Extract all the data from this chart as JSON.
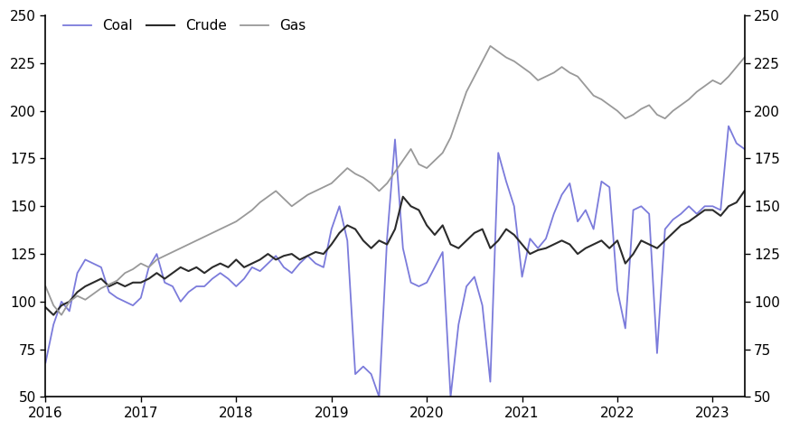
{
  "coal_color": "#7b7bdb",
  "crude_color": "#2b2b2b",
  "gas_color": "#999999",
  "ylim": [
    50,
    250
  ],
  "yticks": [
    50,
    75,
    100,
    125,
    150,
    175,
    200,
    225,
    250
  ],
  "coal": [
    68,
    88,
    100,
    95,
    115,
    122,
    120,
    118,
    105,
    102,
    100,
    98,
    102,
    118,
    125,
    110,
    108,
    100,
    105,
    108,
    108,
    112,
    115,
    112,
    108,
    112,
    118,
    116,
    120,
    124,
    118,
    115,
    120,
    124,
    120,
    118,
    138,
    150,
    132,
    62,
    66,
    62,
    50,
    133,
    185,
    128,
    110,
    108,
    110,
    118,
    126,
    50,
    88,
    108,
    113,
    98,
    58,
    178,
    163,
    150,
    113,
    133,
    128,
    133,
    146,
    156,
    162,
    142,
    148,
    138,
    163,
    160,
    106,
    86,
    148,
    150,
    146,
    73,
    138,
    143,
    146,
    150,
    146,
    150,
    150,
    148,
    192,
    183,
    180
  ],
  "crude": [
    97,
    93,
    98,
    100,
    105,
    108,
    110,
    112,
    108,
    110,
    108,
    110,
    110,
    112,
    115,
    112,
    115,
    118,
    116,
    118,
    115,
    118,
    120,
    118,
    122,
    118,
    120,
    122,
    125,
    122,
    124,
    125,
    122,
    124,
    126,
    125,
    130,
    136,
    140,
    138,
    132,
    128,
    132,
    130,
    138,
    155,
    150,
    148,
    140,
    135,
    140,
    130,
    128,
    132,
    136,
    138,
    128,
    132,
    138,
    135,
    130,
    125,
    127,
    128,
    130,
    132,
    130,
    125,
    128,
    130,
    132,
    128,
    132,
    120,
    125,
    132,
    130,
    128,
    132,
    136,
    140,
    142,
    145,
    148,
    148,
    145,
    150,
    152,
    158
  ],
  "gas": [
    108,
    98,
    93,
    100,
    103,
    101,
    104,
    107,
    109,
    111,
    115,
    117,
    120,
    118,
    122,
    124,
    126,
    128,
    130,
    132,
    134,
    136,
    138,
    140,
    142,
    145,
    148,
    152,
    155,
    158,
    154,
    150,
    153,
    156,
    158,
    160,
    162,
    166,
    170,
    167,
    165,
    162,
    158,
    162,
    168,
    174,
    180,
    172,
    170,
    174,
    178,
    186,
    198,
    210,
    218,
    226,
    234,
    231,
    228,
    226,
    223,
    220,
    216,
    218,
    220,
    223,
    220,
    218,
    213,
    208,
    206,
    203,
    200,
    196,
    198,
    201,
    203,
    198,
    196,
    200,
    203,
    206,
    210,
    213,
    216,
    214,
    218,
    223,
    228
  ],
  "xtick_labels": [
    "2016",
    "2017",
    "2018",
    "2019",
    "2020",
    "2021",
    "2022",
    "2023"
  ],
  "xtick_positions": [
    0,
    12,
    24,
    36,
    48,
    60,
    72,
    84
  ]
}
